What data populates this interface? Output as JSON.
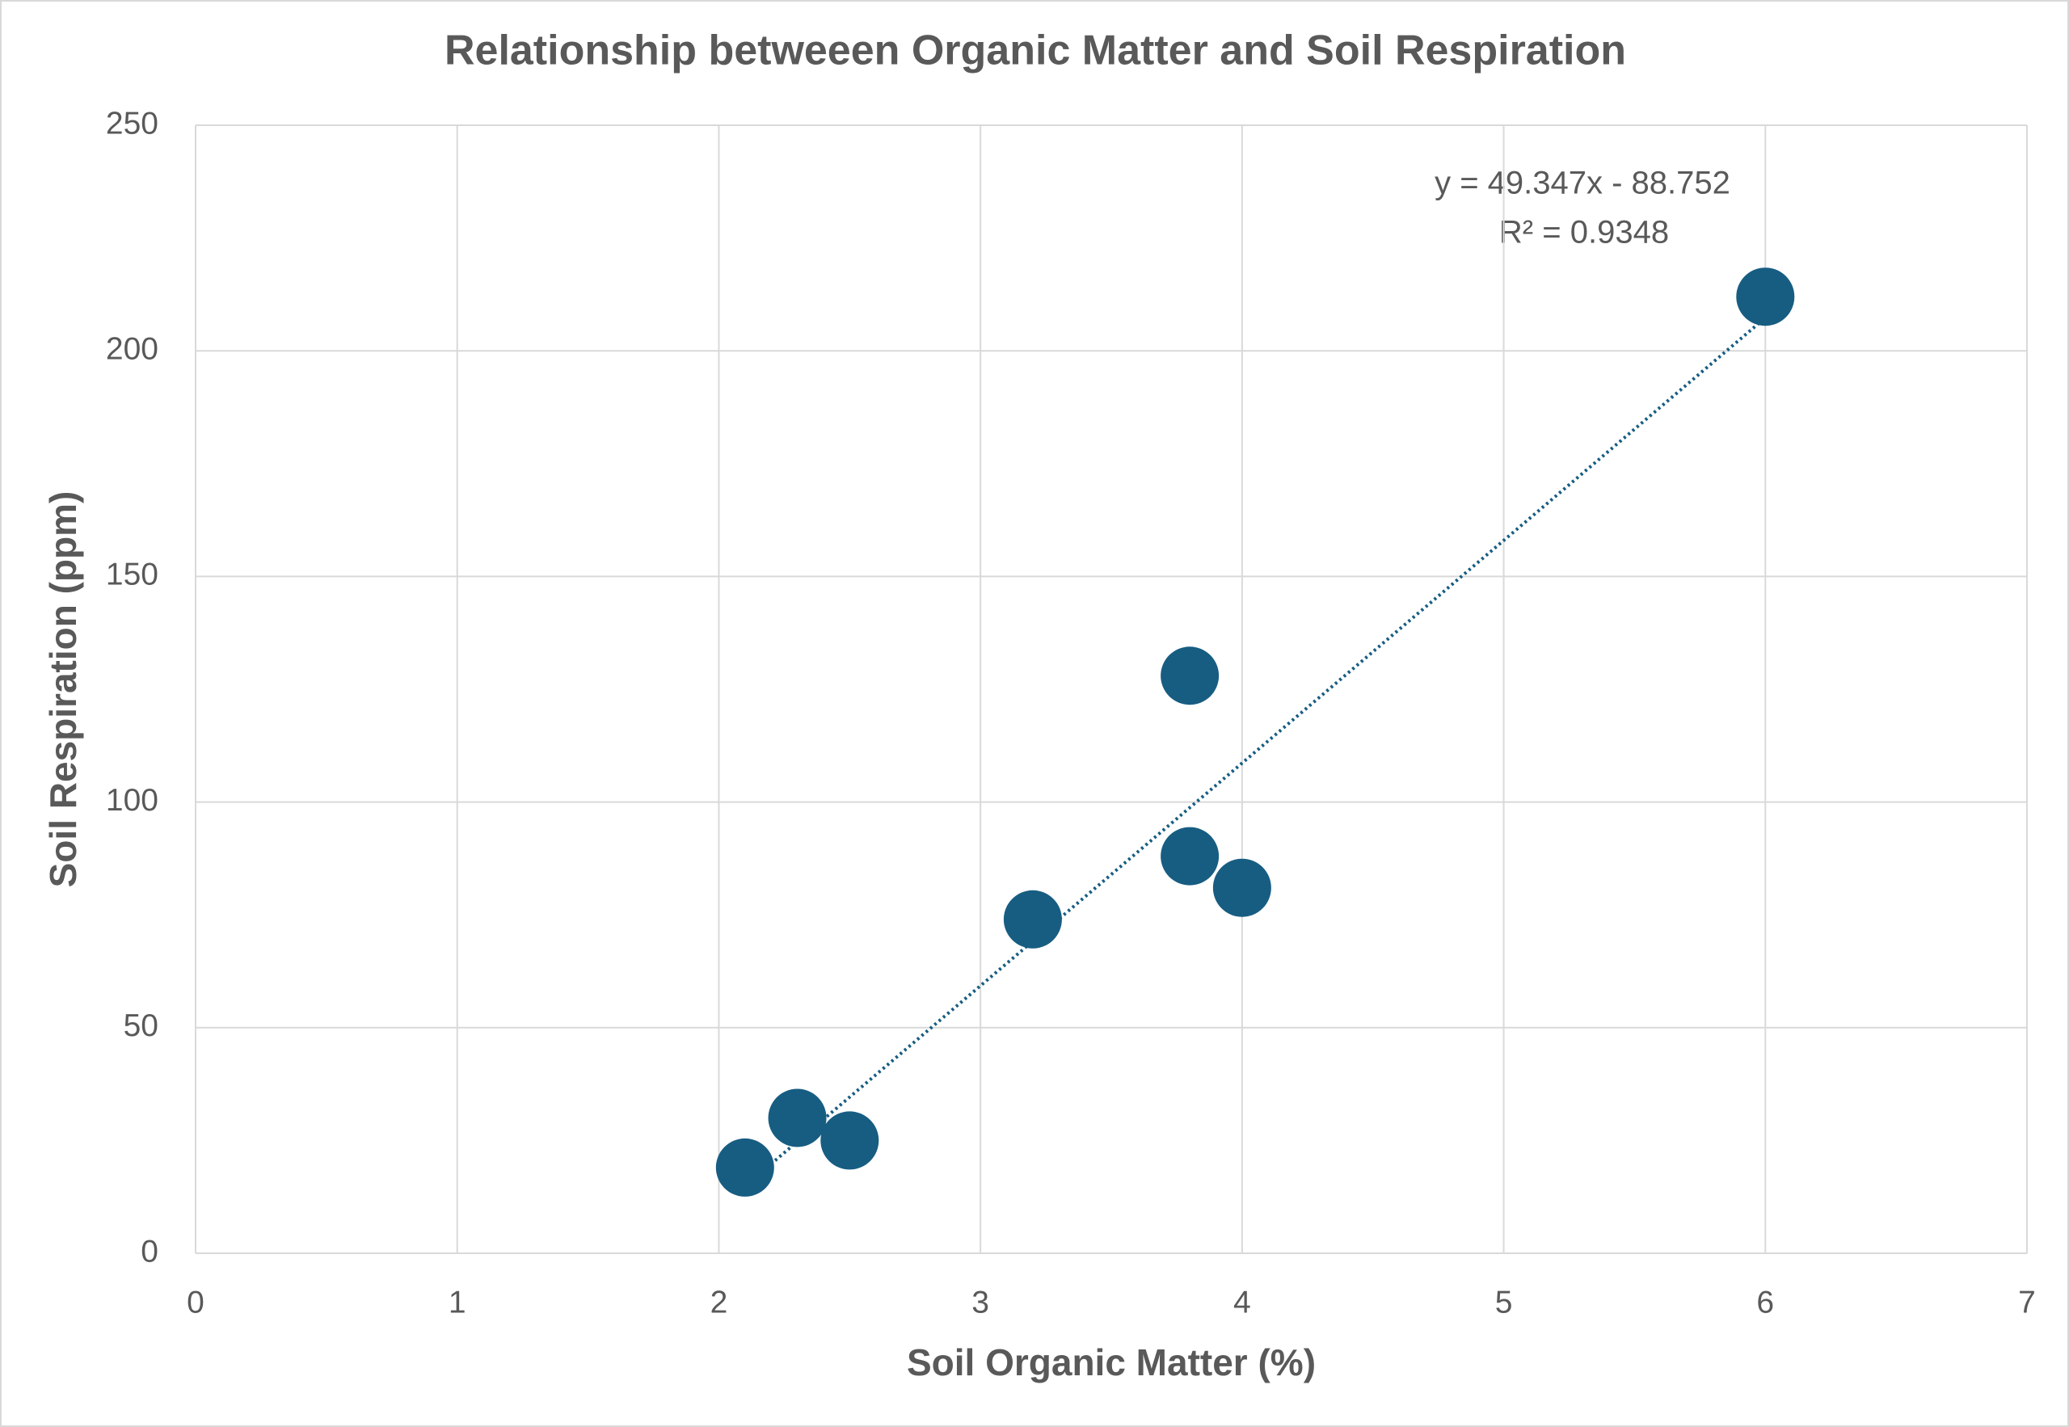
{
  "chart_data": {
    "type": "scatter",
    "title": "Relationship betweeen Organic Matter and Soil Respiration",
    "x_label": "Soil Organic Matter (%)",
    "y_label": "Soil Respiration (ppm)",
    "series": [
      {
        "name": "Soil Respiration (ppm)",
        "color": "#175d82",
        "x": [
          2.1,
          2.3,
          2.5,
          3.2,
          3.8,
          3.8,
          4.0,
          6.0
        ],
        "values": [
          19,
          30,
          25,
          74,
          128,
          88,
          81,
          212
        ]
      }
    ],
    "trendline": {
      "slope": 49.347,
      "intercept": -88.752,
      "color": "#175d82",
      "equation": "y = 49.347x - 88.752",
      "r_squared": "R² = 0.9348"
    },
    "xlim": [
      0,
      7
    ],
    "xticks": [
      0,
      1,
      2,
      3,
      4,
      5,
      6,
      7
    ],
    "ylim": [
      0,
      250
    ],
    "yticks": [
      0,
      50,
      100,
      150,
      200,
      250
    ],
    "grid": true
  }
}
